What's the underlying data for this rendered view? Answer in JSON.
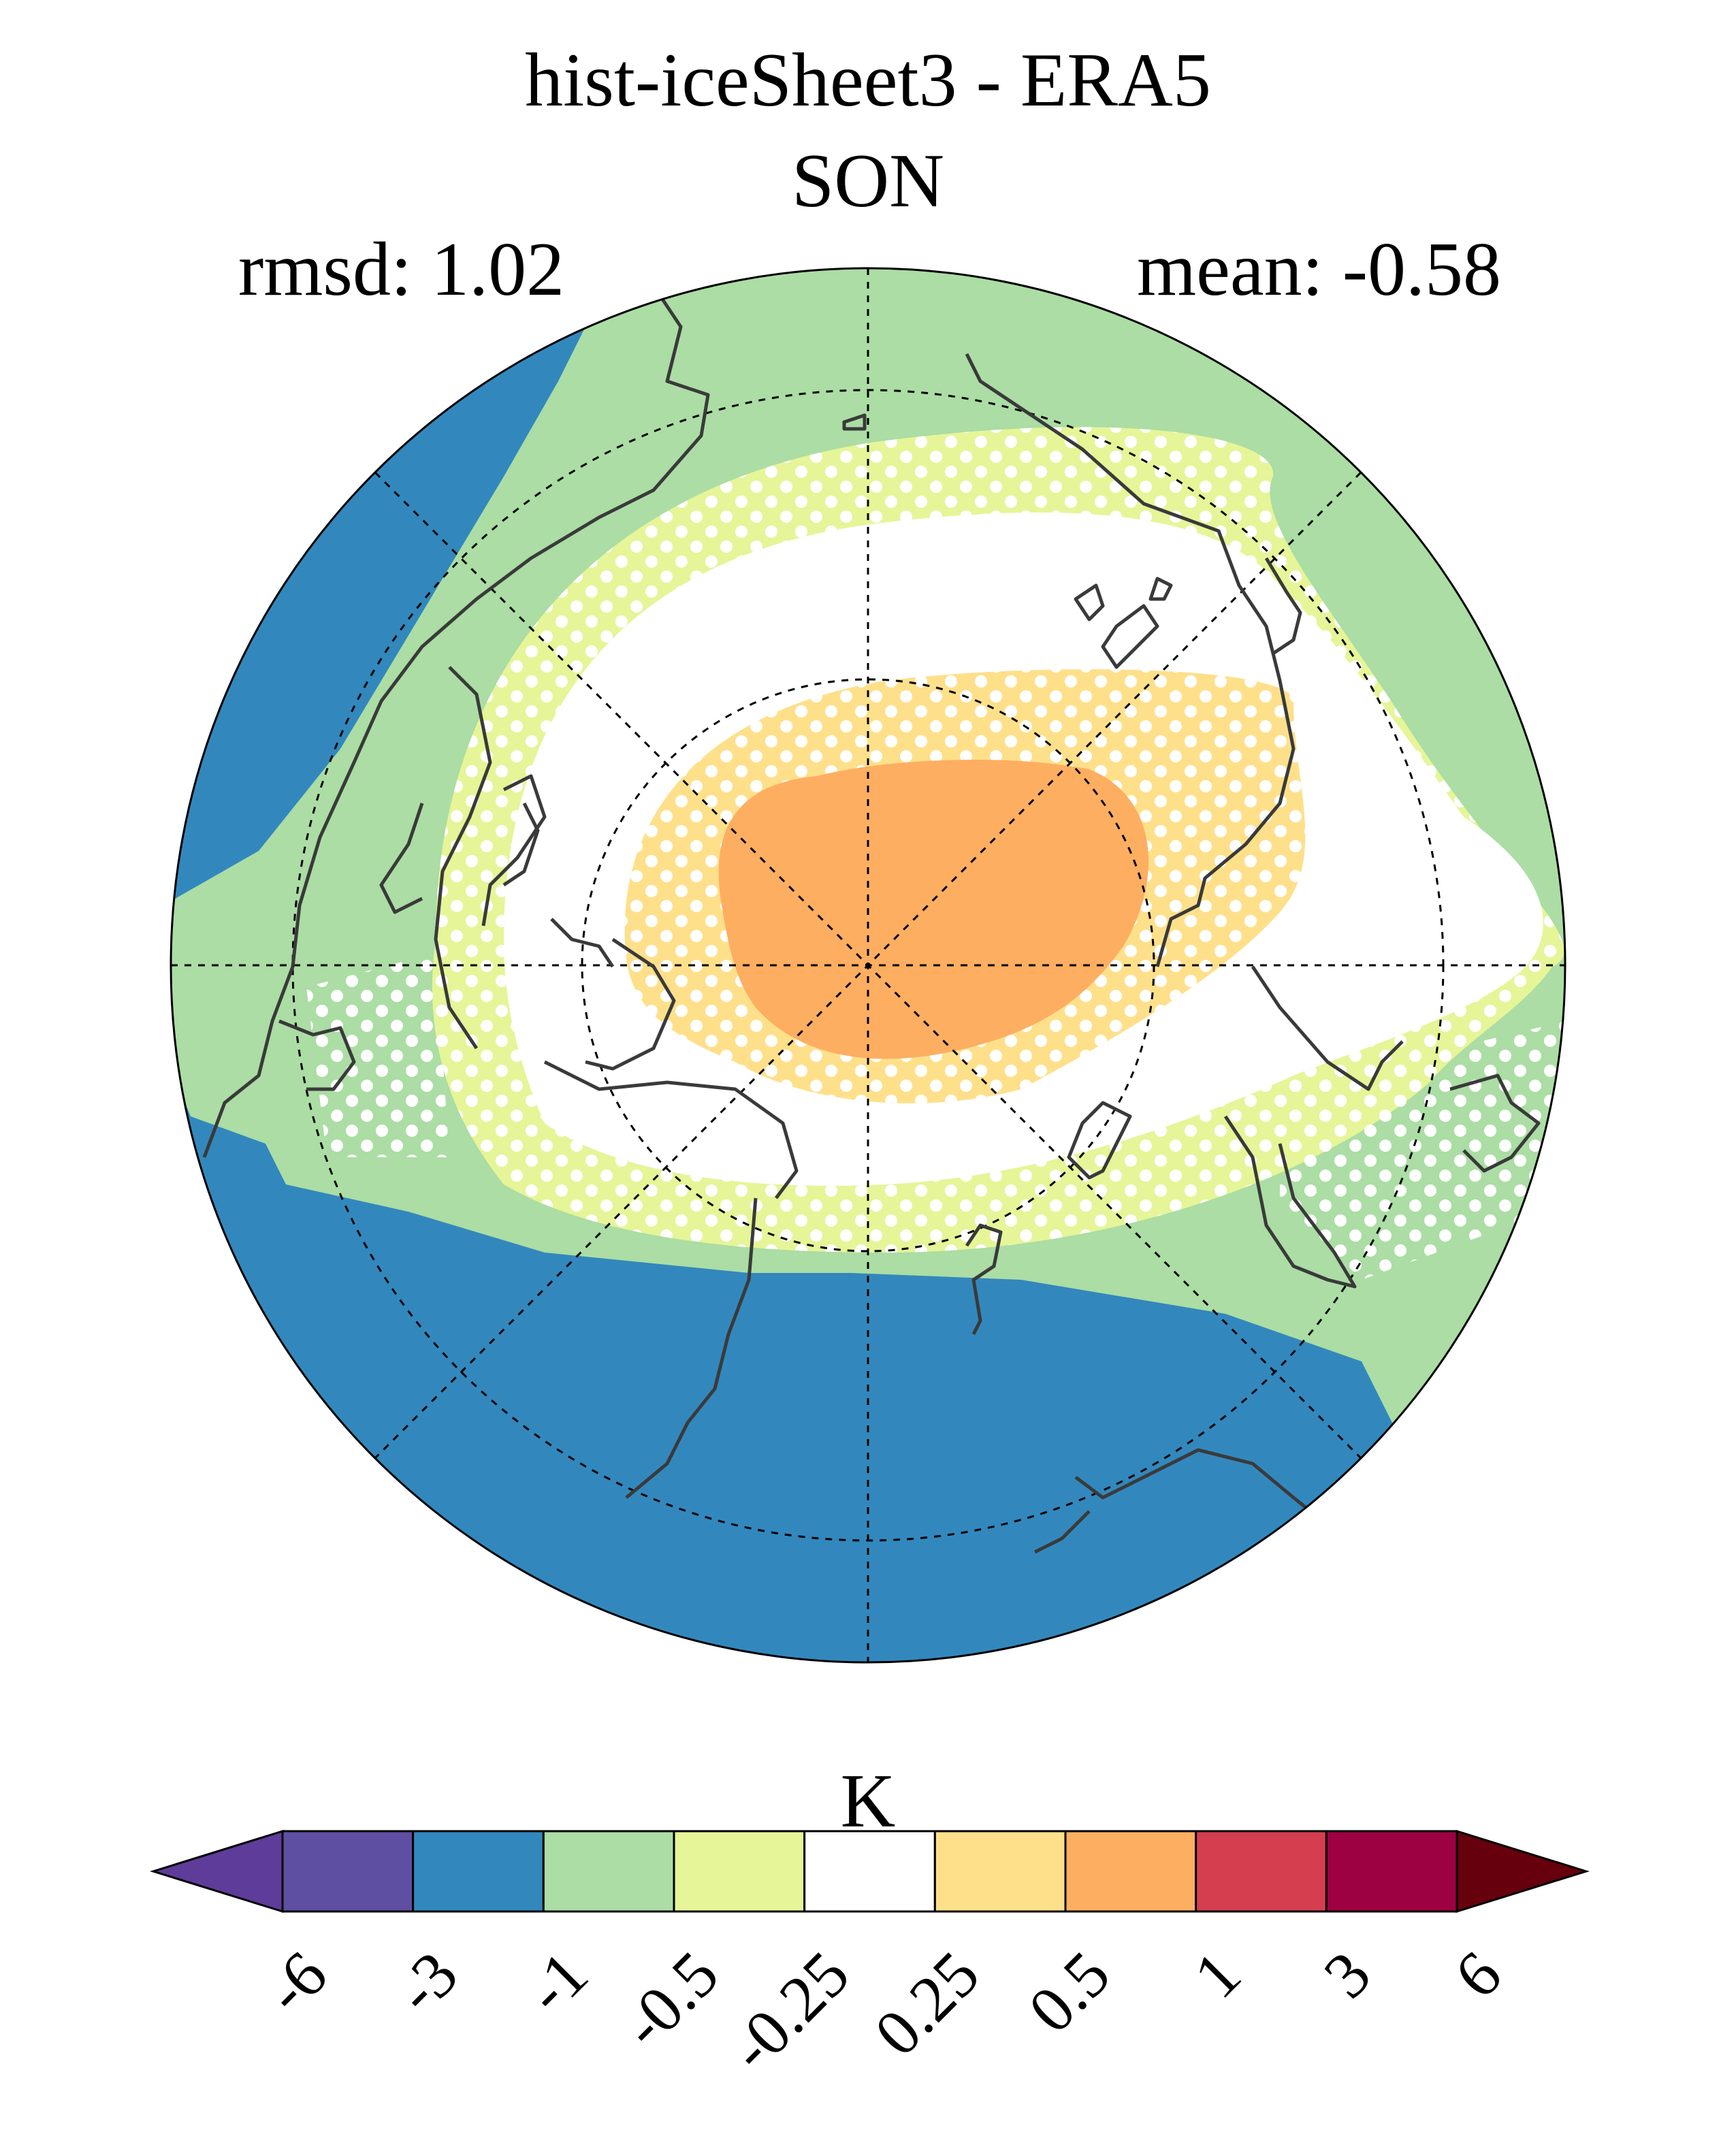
{
  "figure": {
    "title": "hist-iceSheet3 - ERA5",
    "season": "SON",
    "rmsd": "rmsd: 1.02",
    "mean": "mean: -0.58"
  },
  "colorbar": {
    "unit": "K",
    "tick_labels": [
      "-6",
      "-3",
      "-1",
      "-0.5",
      "-0.25",
      "0.25",
      "0.5",
      "1",
      "3",
      "6"
    ],
    "colors": [
      "#5e3c99",
      "#5e4fa2",
      "#3288bd",
      "#abdda4",
      "#e6f598",
      "#ffffff",
      "#fee08b",
      "#fdae61",
      "#d53e4f",
      "#9e0142",
      "#67000d"
    ]
  },
  "map": {
    "projection": "north-polar-stereographic",
    "stippling": "white dots mark significant regions",
    "field_colors": {
      "blue": "#3288bd",
      "green": "#abdda4",
      "yellow": "#e6f598",
      "white": "#ffffff",
      "light_orange": "#fee08b",
      "orange": "#fdae61"
    }
  }
}
